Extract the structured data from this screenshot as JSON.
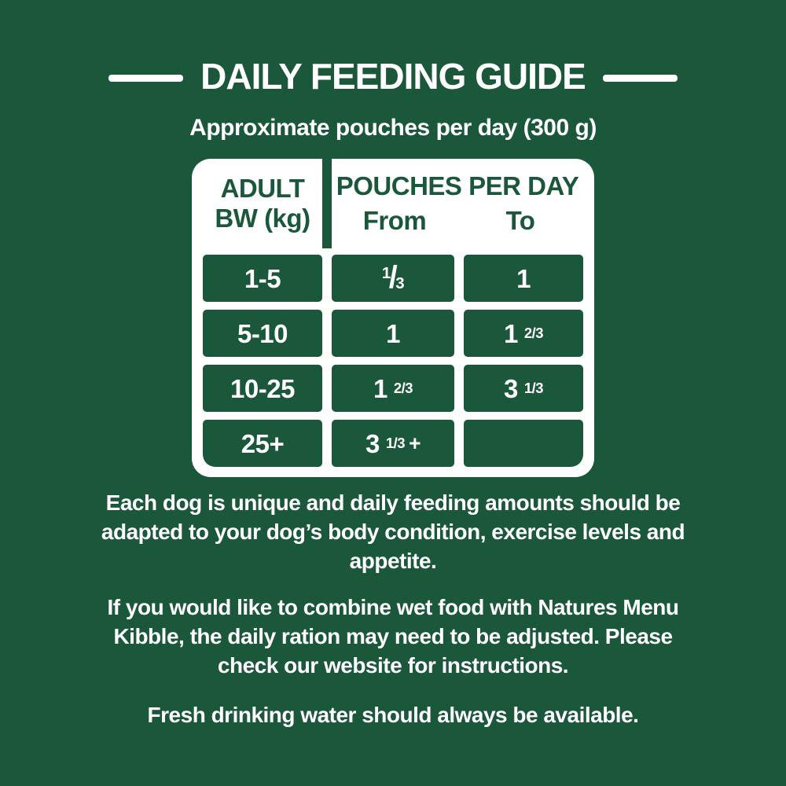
{
  "colors": {
    "background_green": "#1A573B",
    "text_white": "#FFFFFF",
    "table_card_white": "#FFFFFF",
    "table_header_text_green": "#1A573B"
  },
  "header": {
    "title": "DAILY FEEDING GUIDE",
    "subtitle": "Approximate pouches per day (300 g)"
  },
  "table": {
    "bw_header_line1": "ADULT",
    "bw_header_line2": "BW (kg)",
    "pouches_header": "POUCHES PER DAY",
    "from_label": "From",
    "to_label": "To",
    "rows": [
      {
        "bw": "1-5",
        "from": {
          "num": "1",
          "slash": "/",
          "den": "3"
        },
        "to": {
          "whole": "1"
        }
      },
      {
        "bw": "5-10",
        "from": {
          "whole": "1"
        },
        "to": {
          "whole": "1",
          "frac": "2/3"
        }
      },
      {
        "bw": "10-25",
        "from": {
          "whole": "1",
          "frac": "2/3"
        },
        "to": {
          "whole": "3",
          "frac": "1/3"
        }
      },
      {
        "bw": "25+",
        "from": {
          "whole": "3",
          "frac": "1/3",
          "plus": "+"
        },
        "to": {}
      }
    ]
  },
  "notes": [
    "Each dog is unique and daily feeding amounts should be adapted to your dog’s body condition, exercise levels and appetite.",
    "If you would like to combine wet food with Natures Menu Kibble, the daily ration may need to be adjusted. Please check our website for instructions.",
    "Fresh drinking water should always be available."
  ]
}
